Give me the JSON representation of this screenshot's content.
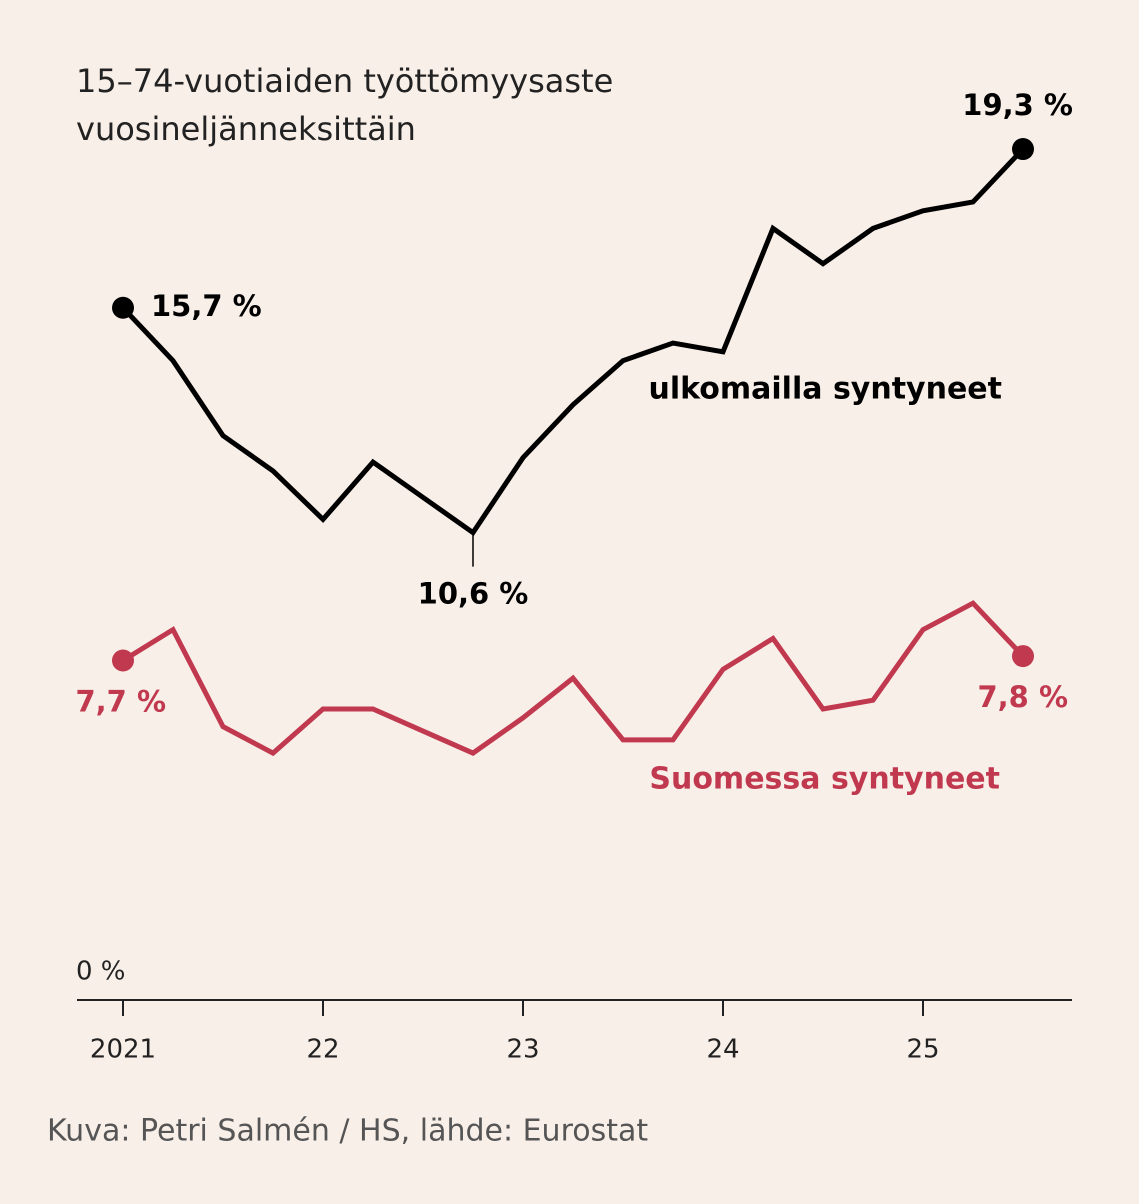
{
  "chart_data": {
    "type": "line",
    "title": "15–74-vuotiaiden työttömyysaste",
    "subtitle": "vuosineljänneksittäin",
    "source": "Kuva: Petri Salmén / HS, lähde: Eurostat",
    "categories": [
      "2021",
      null,
      null,
      null,
      "22",
      null,
      null,
      null,
      "23",
      null,
      null,
      null,
      "24",
      null,
      null,
      null,
      "25",
      null,
      null
    ],
    "series": [
      {
        "name": "ulkomailla syntyneet",
        "color": "#000000",
        "values": [
          15.7,
          14.5,
          12.8,
          12.0,
          10.9,
          12.2,
          11.4,
          10.6,
          12.3,
          13.5,
          14.5,
          14.9,
          14.7,
          17.5,
          16.7,
          17.5,
          17.9,
          18.1,
          19.3
        ],
        "value_labels": [
          "15,7 %",
          null,
          null,
          null,
          null,
          null,
          null,
          "10,6 %",
          null,
          null,
          null,
          null,
          null,
          null,
          null,
          null,
          null,
          null,
          "19,3 %"
        ]
      },
      {
        "name": "Suomessa syntyneet",
        "color": "#c0394f",
        "values": [
          7.7,
          8.4,
          6.2,
          5.6,
          6.6,
          6.6,
          6.1,
          5.6,
          6.4,
          7.3,
          5.9,
          5.9,
          7.5,
          8.2,
          6.6,
          6.8,
          8.4,
          9.0,
          7.8
        ],
        "value_labels": [
          "7,7 %",
          null,
          null,
          null,
          null,
          null,
          null,
          null,
          null,
          null,
          null,
          null,
          null,
          null,
          null,
          null,
          null,
          null,
          "7,8 %"
        ]
      }
    ],
    "ylim": [
      0,
      22
    ],
    "yticks": [
      {
        "value": 0,
        "label": "0 %"
      }
    ]
  }
}
